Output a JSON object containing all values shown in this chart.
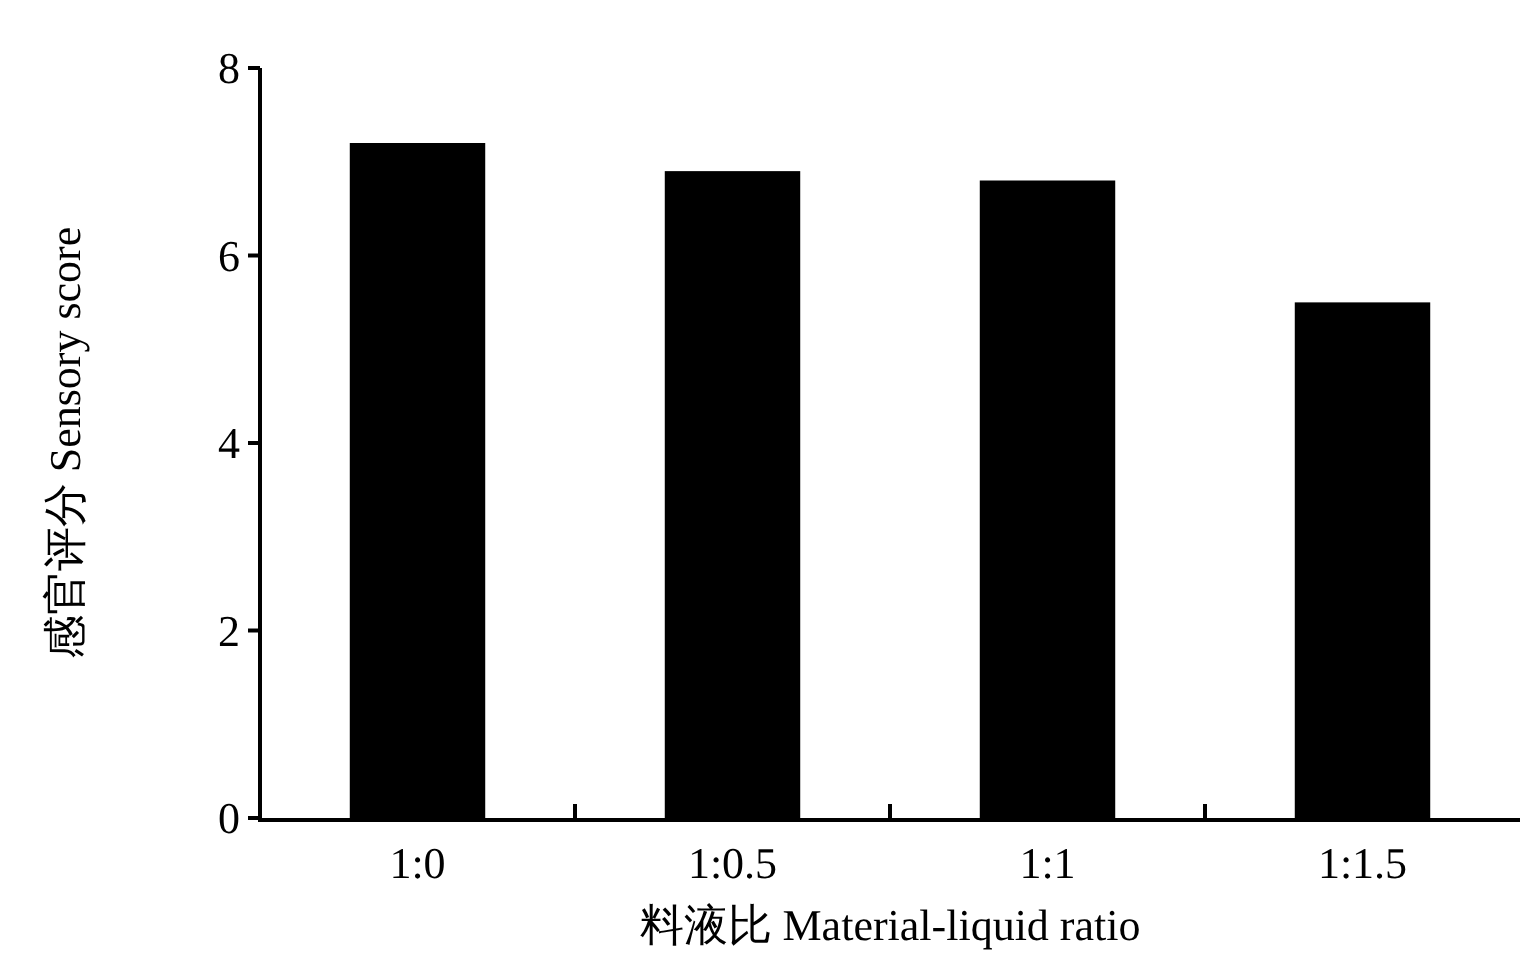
{
  "chart_data": {
    "type": "bar",
    "xlabel": "料液比 Material-liquid ratio",
    "ylabel": "感官评分 Sensory score",
    "categories": [
      "1:0",
      "1:0.5",
      "1:1",
      "1:1.5"
    ],
    "values": [
      7.2,
      6.9,
      6.8,
      5.5
    ],
    "color": "#000000",
    "ylim": [
      0,
      8
    ],
    "yticks": [
      0,
      2,
      4,
      6,
      8
    ],
    "grid": false
  }
}
